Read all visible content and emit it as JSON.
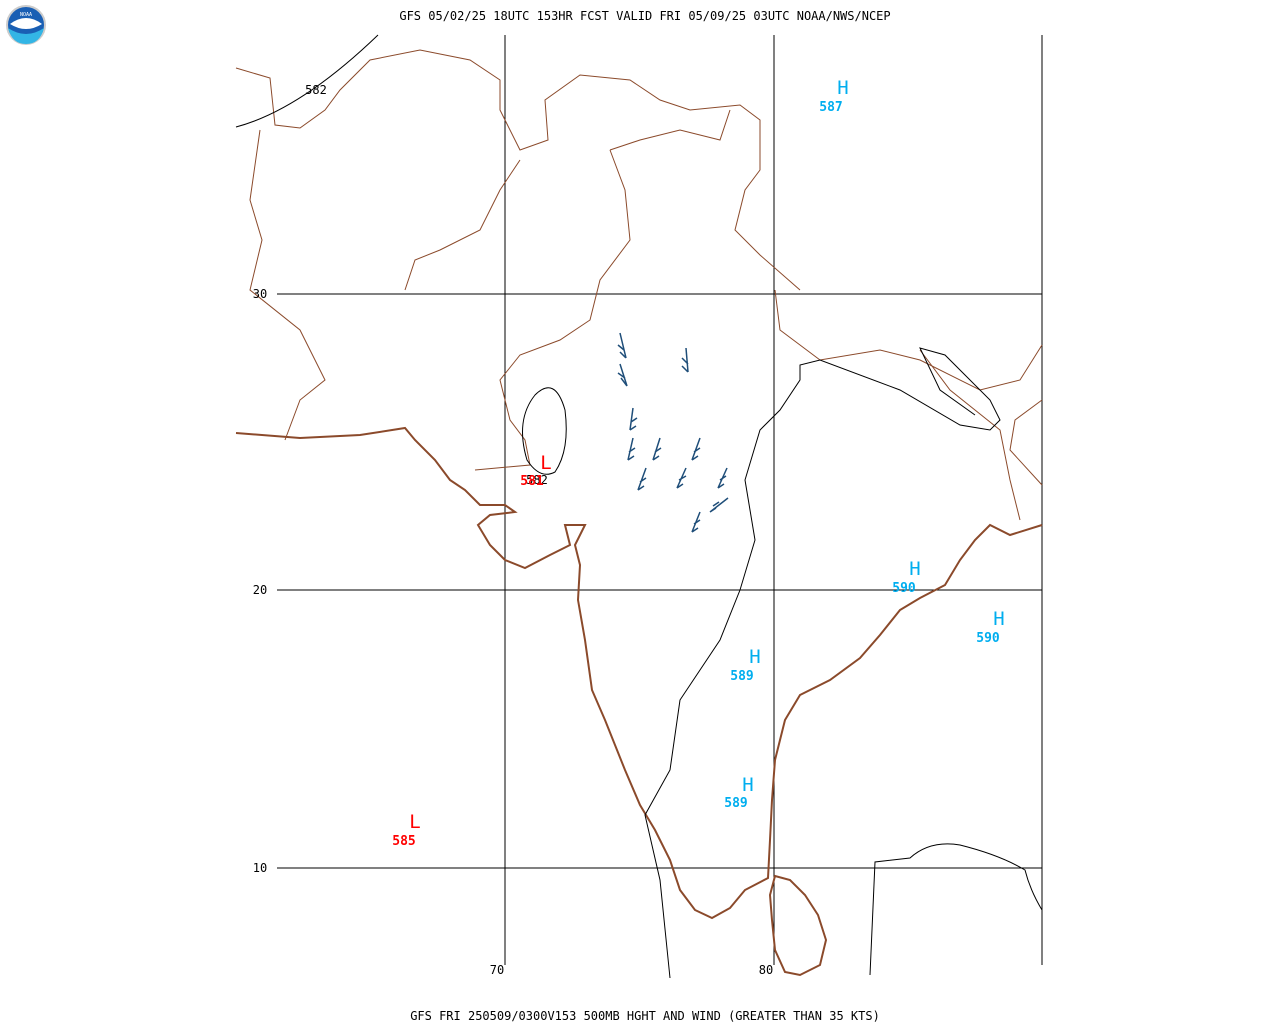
{
  "header": {
    "title": "GFS 05/02/25 18UTC 153HR FCST VALID FRI 05/09/25 03UTC NOAA/NWS/NCEP"
  },
  "footer": {
    "caption": "GFS FRI 250509/0300V153 500MB HGHT AND WIND (GREATER THAN 35 KTS)"
  },
  "logo": {
    "text": "NOAA"
  },
  "map": {
    "lat_labels": [
      "30",
      "20",
      "10"
    ],
    "lon_labels": [
      "70",
      "80"
    ],
    "contour_labels": [
      "582",
      "582"
    ],
    "centers": [
      {
        "type": "H",
        "value": "587"
      },
      {
        "type": "H",
        "value": "590"
      },
      {
        "type": "H",
        "value": "590"
      },
      {
        "type": "H",
        "value": "589"
      },
      {
        "type": "H",
        "value": "589"
      },
      {
        "type": "L",
        "value": "581"
      },
      {
        "type": "L",
        "value": "585"
      }
    ]
  }
}
